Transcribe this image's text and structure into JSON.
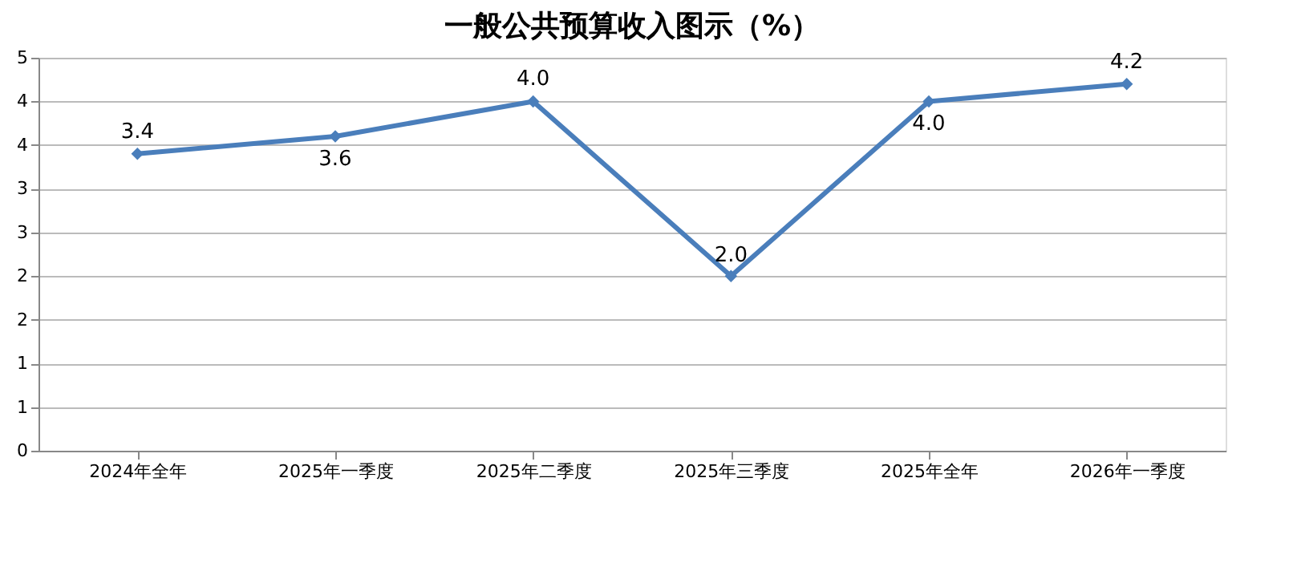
{
  "chart_data": {
    "type": "line",
    "title": "一般公共预算收入图示（%）",
    "categories": [
      "2024年全年",
      "2025年一季度",
      "2025年二季度",
      "2025年三季度",
      "2025年全年",
      "2026年一季度"
    ],
    "series": [
      {
        "color": "#4a7ebb",
        "values": [
          3.4,
          3.6,
          4.0,
          2.0,
          4.0,
          4.2
        ],
        "value_labels": [
          "3.4",
          "3.6",
          "4.0",
          "2.0",
          "4.0",
          "4.2"
        ]
      }
    ],
    "ylim": [
      0,
      4.5
    ],
    "yticks": [
      0,
      {
        "value": 0.5,
        "label": "1"
      },
      1,
      {
        "value": 1.5,
        "label": "2"
      },
      2,
      {
        "value": 2.5,
        "label": "3"
      },
      3,
      {
        "value": 3.5,
        "label": "4"
      },
      4,
      {
        "value": 4.5,
        "label": "5"
      }
    ],
    "grid": "y",
    "marker": "diamond",
    "line_style": "solid"
  }
}
